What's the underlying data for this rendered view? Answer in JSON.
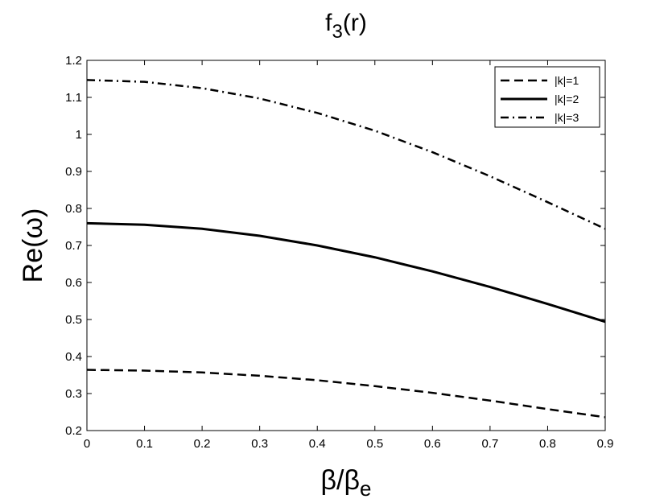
{
  "chart_data": {
    "type": "line",
    "title_main": "f",
    "title_sub": "3",
    "title_tail": "(r)",
    "xlabel_main": "β/β",
    "xlabel_sub": "e",
    "ylabel": "Re(ω)",
    "xlim": [
      0,
      0.9
    ],
    "ylim": [
      0.2,
      1.2
    ],
    "xticks": [
      "0",
      "0.1",
      "0.2",
      "0.3",
      "0.4",
      "0.5",
      "0.6",
      "0.7",
      "0.8",
      "0.9"
    ],
    "yticks": [
      "0.2",
      "0.3",
      "0.4",
      "0.5",
      "0.6",
      "0.7",
      "0.8",
      "0.9",
      "1",
      "1.1",
      "1.2"
    ],
    "grid": false,
    "legend_position": "top-right",
    "x": [
      0,
      0.1,
      0.2,
      0.3,
      0.4,
      0.5,
      0.6,
      0.7,
      0.8,
      0.9
    ],
    "series": [
      {
        "name": "|k|=1",
        "style": "dashed",
        "values": [
          0.364,
          0.362,
          0.357,
          0.348,
          0.336,
          0.32,
          0.302,
          0.281,
          0.258,
          0.236
        ]
      },
      {
        "name": "|k|=2",
        "style": "solid",
        "values": [
          0.76,
          0.756,
          0.745,
          0.726,
          0.7,
          0.668,
          0.63,
          0.588,
          0.542,
          0.494
        ]
      },
      {
        "name": "|k|=3",
        "style": "dashdot",
        "values": [
          1.147,
          1.142,
          1.125,
          1.097,
          1.058,
          1.01,
          0.952,
          0.887,
          0.817,
          0.745
        ]
      }
    ],
    "line_color": "#000000"
  }
}
